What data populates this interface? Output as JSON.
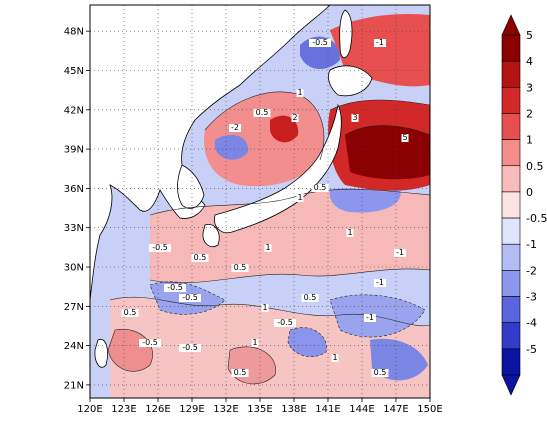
{
  "map": {
    "x_ticks": [
      "120E",
      "123E",
      "126E",
      "129E",
      "132E",
      "135E",
      "138E",
      "141E",
      "144E",
      "147E",
      "150E"
    ],
    "y_ticks": [
      "48N",
      "45N",
      "42N",
      "39N",
      "36N",
      "33N",
      "30N",
      "27N",
      "24N",
      "21N"
    ],
    "lon_range": [
      120,
      150
    ],
    "lat_range": [
      20,
      50
    ],
    "grid": true,
    "contour_labels": [
      "-0.5",
      "1",
      "0.5",
      "-1",
      "-2",
      "2",
      "3",
      "5",
      "-0.5",
      "0.5",
      "1",
      "-1",
      "0.5",
      "-0.5",
      "1",
      "0.5",
      "-1",
      "0.5",
      "-0.5",
      "1",
      "-0.5",
      "0.5",
      "1",
      "-1",
      "-0.5",
      "0.5",
      "1",
      "0.5",
      "-0.5",
      "1"
    ]
  },
  "colorbar": {
    "labels": [
      "5",
      "4",
      "3",
      "2",
      "1",
      "0.5",
      "0",
      "-0.5",
      "-1",
      "-2",
      "-3",
      "-4",
      "-5"
    ],
    "colors": [
      "#8b0000",
      "#b41414",
      "#d22828",
      "#e85050",
      "#f48c8c",
      "#f8bcbc",
      "#fde4e4",
      "#e0e4fc",
      "#b4bcf4",
      "#8c96ec",
      "#5a64dc",
      "#323cc8",
      "#0a14a0"
    ]
  }
}
